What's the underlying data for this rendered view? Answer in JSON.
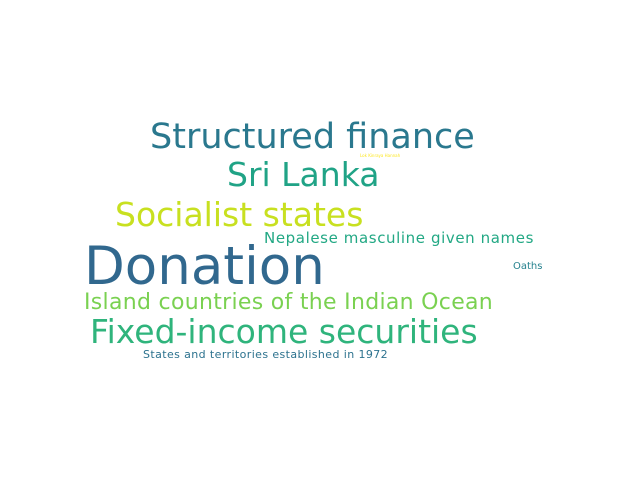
{
  "words": [
    {
      "text": "Structured finance",
      "color": "#2a788e"
    },
    {
      "text": "Sri Lanka",
      "color": "#20a386"
    },
    {
      "text": "Socialist states",
      "color": "#c8e020"
    },
    {
      "text": "Nepalese masculine given names",
      "color": "#22a884"
    },
    {
      "text": "Donation",
      "color": "#31688e"
    },
    {
      "text": "Oaths",
      "color": "#26828e"
    },
    {
      "text": "Island countries of the Indian Ocean",
      "color": "#7ad151"
    },
    {
      "text": "Fixed-income securities",
      "color": "#2fb47c"
    },
    {
      "text": "States and territories established in 1972",
      "color": "#2c728e"
    },
    {
      "text": "Lok Kinraya Hannah",
      "color": "#fde725"
    }
  ]
}
